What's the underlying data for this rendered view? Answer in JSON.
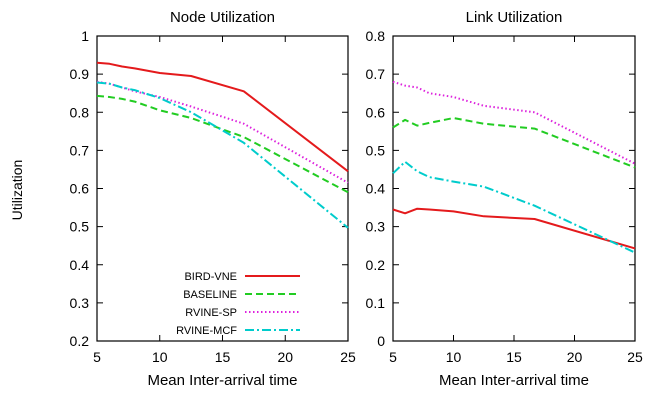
{
  "figure": {
    "shared_ylabel": "Utilization"
  },
  "chart_data": [
    {
      "type": "line",
      "title": "Node Utilization",
      "xlabel": "Mean Inter-arrival time",
      "ylabel": "Utilization",
      "xlim": [
        5,
        25
      ],
      "ylim": [
        0.2,
        1
      ],
      "xticks": [
        "5",
        "10",
        "15",
        "20",
        "25"
      ],
      "yticks": [
        "0.2",
        "0.3",
        "0.4",
        "0.5",
        "0.6",
        "0.7",
        "0.8",
        "0.9",
        "1"
      ],
      "legend_position": "bottom-left",
      "grid": false,
      "series": [
        {
          "name": "BIRD-VNE",
          "color": "#e41a1c",
          "dash": "solid",
          "x": [
            5,
            6,
            7,
            8,
            10,
            12.5,
            16.7,
            25
          ],
          "y": [
            0.93,
            0.927,
            0.92,
            0.915,
            0.903,
            0.895,
            0.855,
            0.645
          ]
        },
        {
          "name": "BASELINE",
          "color": "#22cc22",
          "dash": "dashed",
          "x": [
            5,
            6,
            7,
            8,
            10,
            12.5,
            16.7,
            25
          ],
          "y": [
            0.843,
            0.84,
            0.835,
            0.828,
            0.805,
            0.785,
            0.735,
            0.59
          ]
        },
        {
          "name": "RVINE-SP",
          "color": "#dd22dd",
          "dash": "dotted",
          "x": [
            5,
            6,
            7,
            8,
            10,
            12.5,
            16.7,
            25
          ],
          "y": [
            0.88,
            0.875,
            0.865,
            0.855,
            0.84,
            0.815,
            0.77,
            0.615
          ]
        },
        {
          "name": "RVINE-MCF",
          "color": "#00cccc",
          "dash": "dashdot",
          "x": [
            5,
            6,
            7,
            8,
            10,
            12.5,
            16.7,
            25
          ],
          "y": [
            0.878,
            0.875,
            0.865,
            0.858,
            0.837,
            0.8,
            0.72,
            0.497
          ]
        }
      ]
    },
    {
      "type": "line",
      "title": "Link Utilization",
      "xlabel": "Mean Inter-arrival time",
      "xlim": [
        5,
        25
      ],
      "ylim": [
        0,
        0.8
      ],
      "xticks": [
        "5",
        "10",
        "15",
        "20",
        "25"
      ],
      "yticks": [
        "0",
        "0.1",
        "0.2",
        "0.3",
        "0.4",
        "0.5",
        "0.6",
        "0.7",
        "0.8"
      ],
      "grid": false,
      "series": [
        {
          "name": "BIRD-VNE",
          "color": "#e41a1c",
          "dash": "solid",
          "x": [
            5,
            6,
            7,
            8,
            10,
            12.5,
            16.7,
            25
          ],
          "y": [
            0.345,
            0.335,
            0.347,
            0.345,
            0.34,
            0.327,
            0.32,
            0.243
          ]
        },
        {
          "name": "BASELINE",
          "color": "#22cc22",
          "dash": "dashed",
          "x": [
            5,
            6,
            7,
            8,
            10,
            12.5,
            16.7,
            25
          ],
          "y": [
            0.56,
            0.58,
            0.565,
            0.572,
            0.585,
            0.57,
            0.557,
            0.455
          ]
        },
        {
          "name": "RVINE-SP",
          "color": "#dd22dd",
          "dash": "dotted",
          "x": [
            5,
            6,
            7,
            8,
            10,
            12.5,
            16.7,
            25
          ],
          "y": [
            0.68,
            0.67,
            0.665,
            0.65,
            0.64,
            0.617,
            0.6,
            0.465
          ]
        },
        {
          "name": "RVINE-MCF",
          "color": "#00cccc",
          "dash": "dashdot",
          "x": [
            5,
            6,
            7,
            8,
            10,
            12.5,
            16.7,
            25
          ],
          "y": [
            0.44,
            0.47,
            0.445,
            0.43,
            0.418,
            0.405,
            0.355,
            0.232
          ]
        }
      ]
    }
  ]
}
